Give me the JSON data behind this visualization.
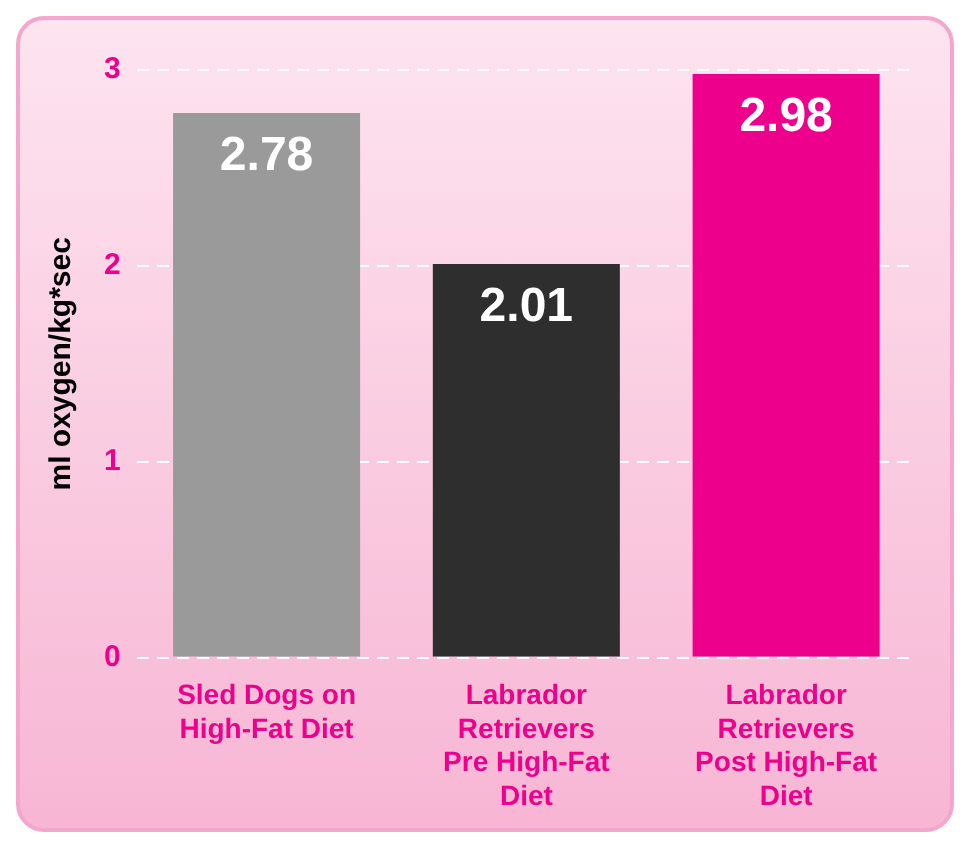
{
  "chart_data": {
    "type": "bar",
    "ylabel": "ml oxygen/kg*sec",
    "categories": [
      "Sled Dogs on High-Fat Diet",
      "Labrador Retrievers Pre High-Fat Diet",
      "Labrador Retrievers Post High-Fat Diet"
    ],
    "values": [
      2.78,
      2.01,
      2.98
    ],
    "colors": [
      "#9a9a9a",
      "#2e2e2e",
      "#ec008c"
    ],
    "ylim": [
      0,
      3
    ],
    "yticks": [
      0,
      1,
      2,
      3
    ],
    "grid": "y",
    "data_labels": true,
    "legend": false
  }
}
